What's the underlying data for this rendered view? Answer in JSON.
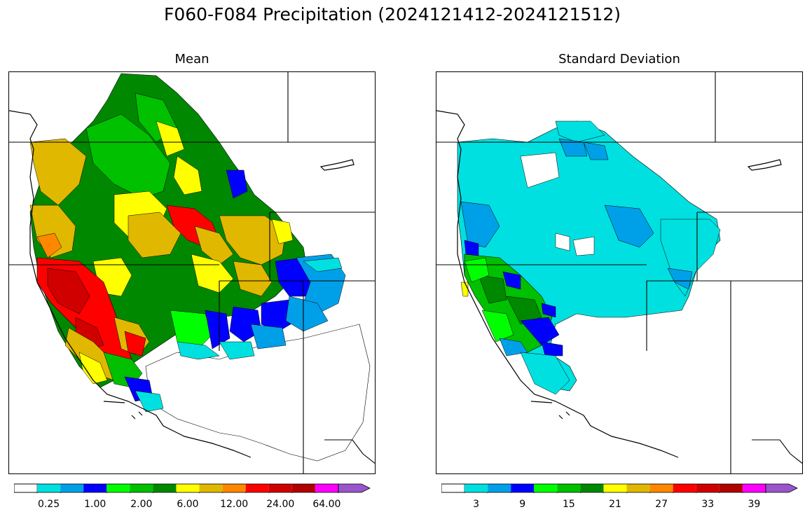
{
  "title": "F060-F084 Precipitation (2024121412-2024121512)",
  "panels": [
    {
      "title": "Mean",
      "colorbar": {
        "colors": [
          "#ffffff",
          "#00e0e0",
          "#00a0e8",
          "#0000ff",
          "#00ff00",
          "#00c000",
          "#008800",
          "#ffff00",
          "#e0b800",
          "#ff8800",
          "#ff0000",
          "#d00000",
          "#b00000",
          "#ff00ff",
          "#9955cc"
        ],
        "tick_labels": [
          "0.25",
          "1.00",
          "2.00",
          "6.00",
          "12.00",
          "24.00",
          "64.00"
        ],
        "tick_indices": [
          1,
          3,
          5,
          7,
          9,
          11,
          13
        ],
        "extend": "max"
      }
    },
    {
      "title": "Standard Deviation",
      "colorbar": {
        "colors": [
          "#ffffff",
          "#00e0e0",
          "#00a0e8",
          "#0000ff",
          "#00ff00",
          "#00c000",
          "#008800",
          "#ffff00",
          "#e0b800",
          "#ff8800",
          "#ff0000",
          "#d00000",
          "#b00000",
          "#ff00ff",
          "#9955cc"
        ],
        "tick_labels": [
          "3",
          "9",
          "15",
          "21",
          "27",
          "33",
          "39"
        ],
        "tick_indices": [
          1,
          3,
          5,
          7,
          9,
          11,
          13
        ],
        "extend": "max"
      }
    }
  ]
}
